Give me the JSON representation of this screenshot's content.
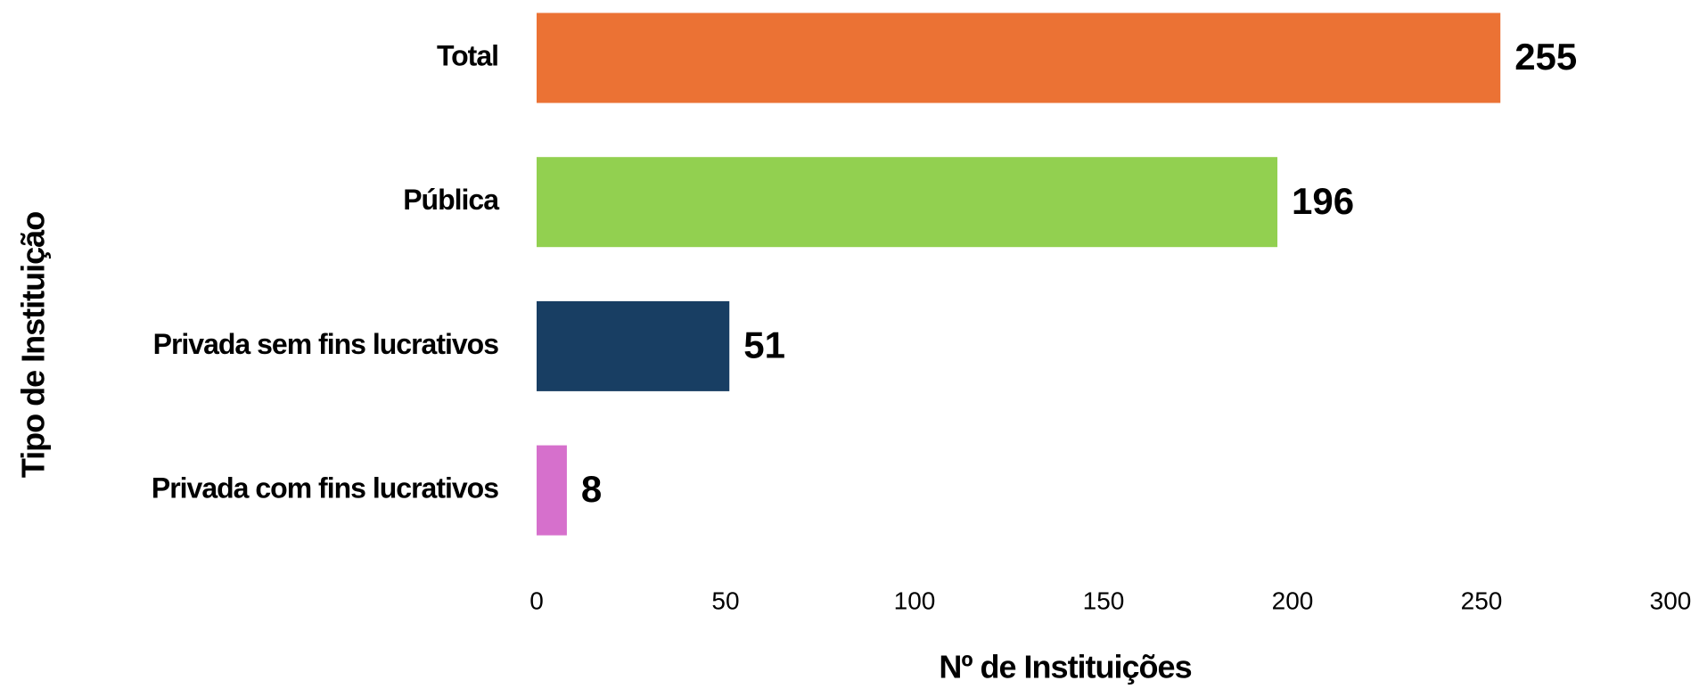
{
  "chart_data": {
    "type": "barh",
    "categories": [
      "Total",
      "Pública",
      "Privada sem fins lucrativos",
      "Privada com fins lucrativos"
    ],
    "values": [
      255,
      196,
      51,
      8
    ],
    "colors": [
      "#eb7234",
      "#92d050",
      "#183e63",
      "#d670cc"
    ],
    "xlabel": "Nº de Instituições",
    "ylabel": "Tipo de Instituição",
    "xlim": [
      0,
      300
    ],
    "xticks": [
      0,
      50,
      100,
      150,
      200,
      250,
      300
    ],
    "grid": false
  }
}
